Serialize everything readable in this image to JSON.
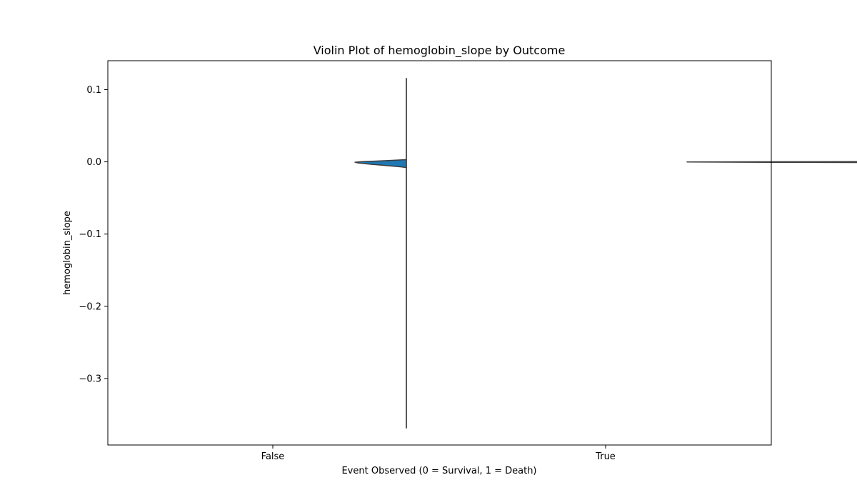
{
  "chart_data": {
    "type": "violin",
    "title": "Violin Plot of hemoglobin_slope by Outcome",
    "xlabel": "Event Observed (0 = Survival, 1 = Death)",
    "ylabel": "hemoglobin_slope",
    "categories": [
      "False",
      "True"
    ],
    "ylim": [
      -0.392,
      0.14
    ],
    "yticks": [
      0.1,
      0.0,
      -0.1,
      -0.2,
      -0.3
    ],
    "ytick_labels": [
      "0.1",
      "0.0",
      "−0.1",
      "−0.2",
      "−0.3"
    ],
    "grid": false,
    "legend": "none",
    "colors": {
      "fill": "#1f77b4",
      "edge": "#3d3d3d",
      "whisker": "#222222"
    },
    "violins": [
      {
        "category": "False",
        "min": -0.369,
        "max": 0.116,
        "density_profile": [
          [
            0.003,
            0.0
          ],
          [
            0.0028,
            0.08
          ],
          [
            0.002,
            0.28
          ],
          [
            0.001,
            0.62
          ],
          [
            0.0005,
            0.82
          ],
          [
            0.0,
            0.92
          ],
          [
            -0.0005,
            1.0
          ],
          [
            -0.0015,
            0.94
          ],
          [
            -0.003,
            0.74
          ],
          [
            -0.005,
            0.42
          ],
          [
            -0.007,
            0.1
          ],
          [
            -0.008,
            0.0
          ]
        ]
      },
      {
        "category": "True",
        "min": -0.026,
        "max": 0.016,
        "density_profile": [
          [
            0.0012,
            0.0
          ],
          [
            0.0008,
            0.02
          ],
          [
            0.0004,
            0.25
          ],
          [
            0.0001,
            0.75
          ],
          [
            -0.0002,
            1.0
          ],
          [
            -0.0006,
            0.7
          ],
          [
            -0.0012,
            0.15
          ],
          [
            -0.002,
            0.02
          ],
          [
            -0.005,
            0.0
          ]
        ]
      }
    ]
  }
}
